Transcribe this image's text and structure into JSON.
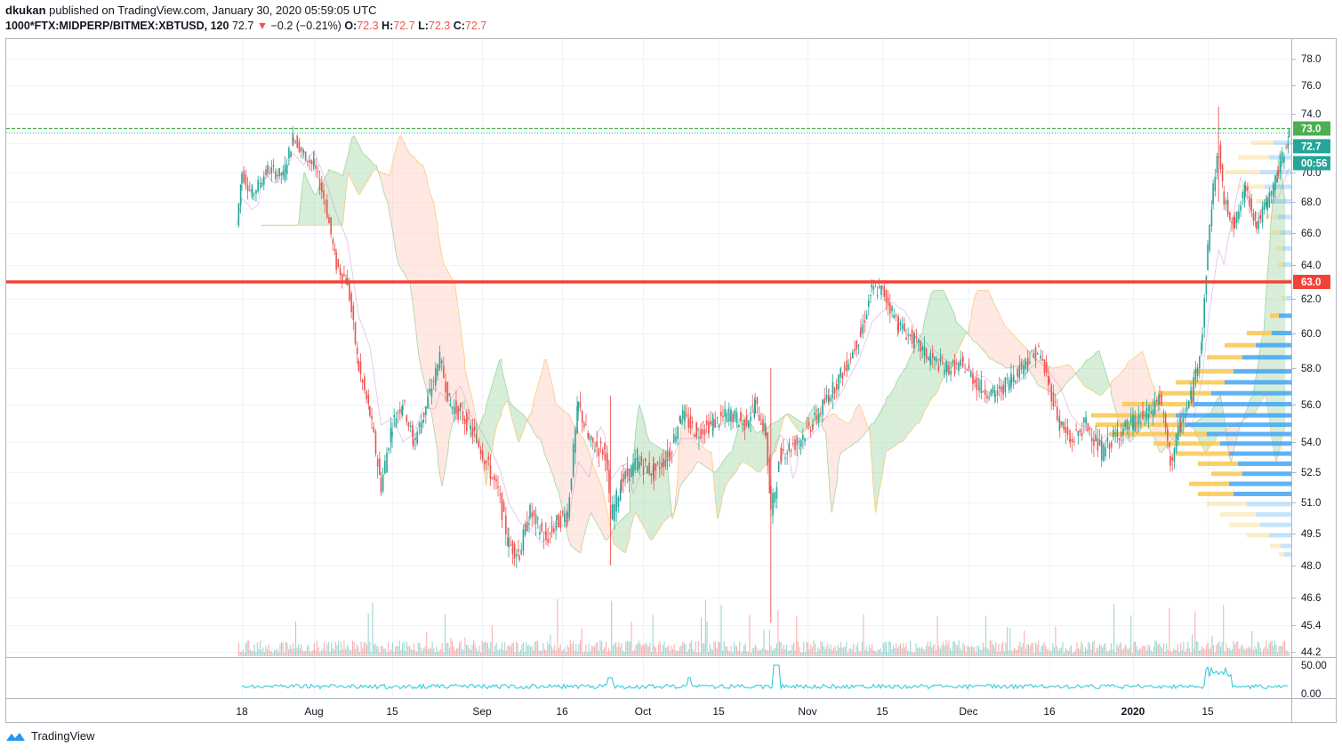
{
  "header": {
    "author": "dkukan",
    "published_text": "published on TradingView.com, January 30, 2020 05:59:05 UTC",
    "symbol": "1000*FTX:MIDPERP/BITMEX:XBTUSD, 120",
    "last": "72.7",
    "change": "−0.2 (−0.21%)",
    "o_label": "O:",
    "o": "72.3",
    "h_label": "H:",
    "h": "72.7",
    "l_label": "L:",
    "l": "72.3",
    "c_label": "C:",
    "c": "72.7"
  },
  "footer": {
    "brand": "TradingView"
  },
  "colors": {
    "up": "#26a69a",
    "down": "#ef5350",
    "support_line": "#f44336",
    "volume_profile_up": "#42a5f5",
    "volume_profile_down": "#f9c74f",
    "cloud_up": "#a5d6a7",
    "cloud_down": "#ffccbc",
    "oscillator": "#26c6da",
    "green_tag": "#4caf50",
    "teal_tag": "#26a69a",
    "grid": "#f0f3fa"
  },
  "price_axis": {
    "ticks": [
      "78.0",
      "76.0",
      "74.0",
      "72.0",
      "70.0",
      "68.0",
      "66.0",
      "64.0",
      "62.0",
      "60.0",
      "58.0",
      "56.0",
      "54.0",
      "52.5",
      "51.0",
      "49.5",
      "48.0",
      "46.6",
      "45.4",
      "44.2"
    ],
    "tags": {
      "green": "73.0",
      "teal": "72.7",
      "countdown": "00:56",
      "red": "63.0"
    }
  },
  "oscillator_axis": {
    "ticks": [
      "50.00",
      "0.00"
    ]
  },
  "time_axis": {
    "ticks": [
      "18",
      "Aug",
      "15",
      "Sep",
      "16",
      "Oct",
      "15",
      "Nov",
      "15",
      "Dec",
      "16",
      "2020",
      "15"
    ]
  },
  "chart_data": {
    "type": "candlestick",
    "symbol": "1000*FTX:MIDPERP/BITMEX:XBTUSD",
    "interval": "120",
    "x_range": [
      "2019-07-17",
      "2020-01-30"
    ],
    "y_scale": "log",
    "ylim": [
      44.2,
      78.0
    ],
    "horizontal_lines": [
      {
        "value": 63.0,
        "color": "#f44336",
        "style": "solid"
      },
      {
        "value": 73.0,
        "color": "#4caf50",
        "style": "dashed"
      },
      {
        "value": 72.7,
        "color": "#26a69a",
        "style": "dotted"
      }
    ],
    "price_path": [
      [
        "2019-07-17",
        66.5
      ],
      [
        "2019-07-18",
        70.0
      ],
      [
        "2019-07-20",
        68.5
      ],
      [
        "2019-07-23",
        70.2
      ],
      [
        "2019-07-26",
        69.8
      ],
      [
        "2019-07-28",
        72.5
      ],
      [
        "2019-07-30",
        71.2
      ],
      [
        "2019-08-01",
        70.5
      ],
      [
        "2019-08-03",
        68.0
      ],
      [
        "2019-08-05",
        64.0
      ],
      [
        "2019-08-07",
        63.0
      ],
      [
        "2019-08-09",
        58.0
      ],
      [
        "2019-08-11",
        55.5
      ],
      [
        "2019-08-13",
        51.8
      ],
      [
        "2019-08-15",
        55.0
      ],
      [
        "2019-08-17",
        56.2
      ],
      [
        "2019-08-19",
        54.0
      ],
      [
        "2019-08-21",
        55.5
      ],
      [
        "2019-08-24",
        58.5
      ],
      [
        "2019-08-26",
        56.0
      ],
      [
        "2019-08-28",
        55.5
      ],
      [
        "2019-08-31",
        54.2
      ],
      [
        "2019-09-04",
        51.5
      ],
      [
        "2019-09-06",
        49.0
      ],
      [
        "2019-09-08",
        48.6
      ],
      [
        "2019-09-10",
        50.5
      ],
      [
        "2019-09-13",
        49.2
      ],
      [
        "2019-09-15",
        50.0
      ],
      [
        "2019-09-17",
        50.5
      ],
      [
        "2019-09-19",
        56.0
      ],
      [
        "2019-09-21",
        54.0
      ],
      [
        "2019-09-24",
        53.5
      ],
      [
        "2019-09-25",
        50.2
      ],
      [
        "2019-09-27",
        52.0
      ],
      [
        "2019-09-30",
        53.0
      ],
      [
        "2019-10-03",
        52.5
      ],
      [
        "2019-10-06",
        53.5
      ],
      [
        "2019-10-08",
        55.5
      ],
      [
        "2019-10-11",
        54.5
      ],
      [
        "2019-10-14",
        55.0
      ],
      [
        "2019-10-17",
        55.5
      ],
      [
        "2019-10-20",
        55.0
      ],
      [
        "2019-10-22",
        56.0
      ],
      [
        "2019-10-24",
        54.5
      ],
      [
        "2019-10-25",
        50.5
      ],
      [
        "2019-10-27",
        53.5
      ],
      [
        "2019-10-30",
        54.0
      ],
      [
        "2019-11-02",
        55.0
      ],
      [
        "2019-11-05",
        56.5
      ],
      [
        "2019-11-08",
        58.0
      ],
      [
        "2019-11-11",
        60.0
      ],
      [
        "2019-11-13",
        62.5
      ],
      [
        "2019-11-15",
        62.5
      ],
      [
        "2019-11-18",
        60.5
      ],
      [
        "2019-11-21",
        59.5
      ],
      [
        "2019-11-24",
        58.5
      ],
      [
        "2019-11-27",
        58.0
      ],
      [
        "2019-11-30",
        58.2
      ],
      [
        "2019-12-03",
        57.0
      ],
      [
        "2019-12-06",
        56.5
      ],
      [
        "2019-12-09",
        57.5
      ],
      [
        "2019-12-12",
        58.5
      ],
      [
        "2019-12-14",
        59.0
      ],
      [
        "2019-12-16",
        57.0
      ],
      [
        "2019-12-18",
        55.0
      ],
      [
        "2019-12-20",
        54.0
      ],
      [
        "2019-12-23",
        55.0
      ],
      [
        "2019-12-26",
        53.5
      ],
      [
        "2019-12-29",
        54.5
      ],
      [
        "2020-01-01",
        55.0
      ],
      [
        "2020-01-04",
        55.5
      ],
      [
        "2020-01-06",
        56.5
      ],
      [
        "2020-01-08",
        53.0
      ],
      [
        "2020-01-10",
        55.0
      ],
      [
        "2020-01-12",
        56.5
      ],
      [
        "2020-01-14",
        60.0
      ],
      [
        "2020-01-15",
        65.0
      ],
      [
        "2020-01-16",
        69.0
      ],
      [
        "2020-01-17",
        71.5
      ],
      [
        "2020-01-18",
        68.0
      ],
      [
        "2020-01-20",
        66.5
      ],
      [
        "2020-01-22",
        69.0
      ],
      [
        "2020-01-24",
        66.5
      ],
      [
        "2020-01-26",
        68.0
      ],
      [
        "2020-01-28",
        70.0
      ],
      [
        "2020-01-30",
        72.7
      ]
    ]
  }
}
